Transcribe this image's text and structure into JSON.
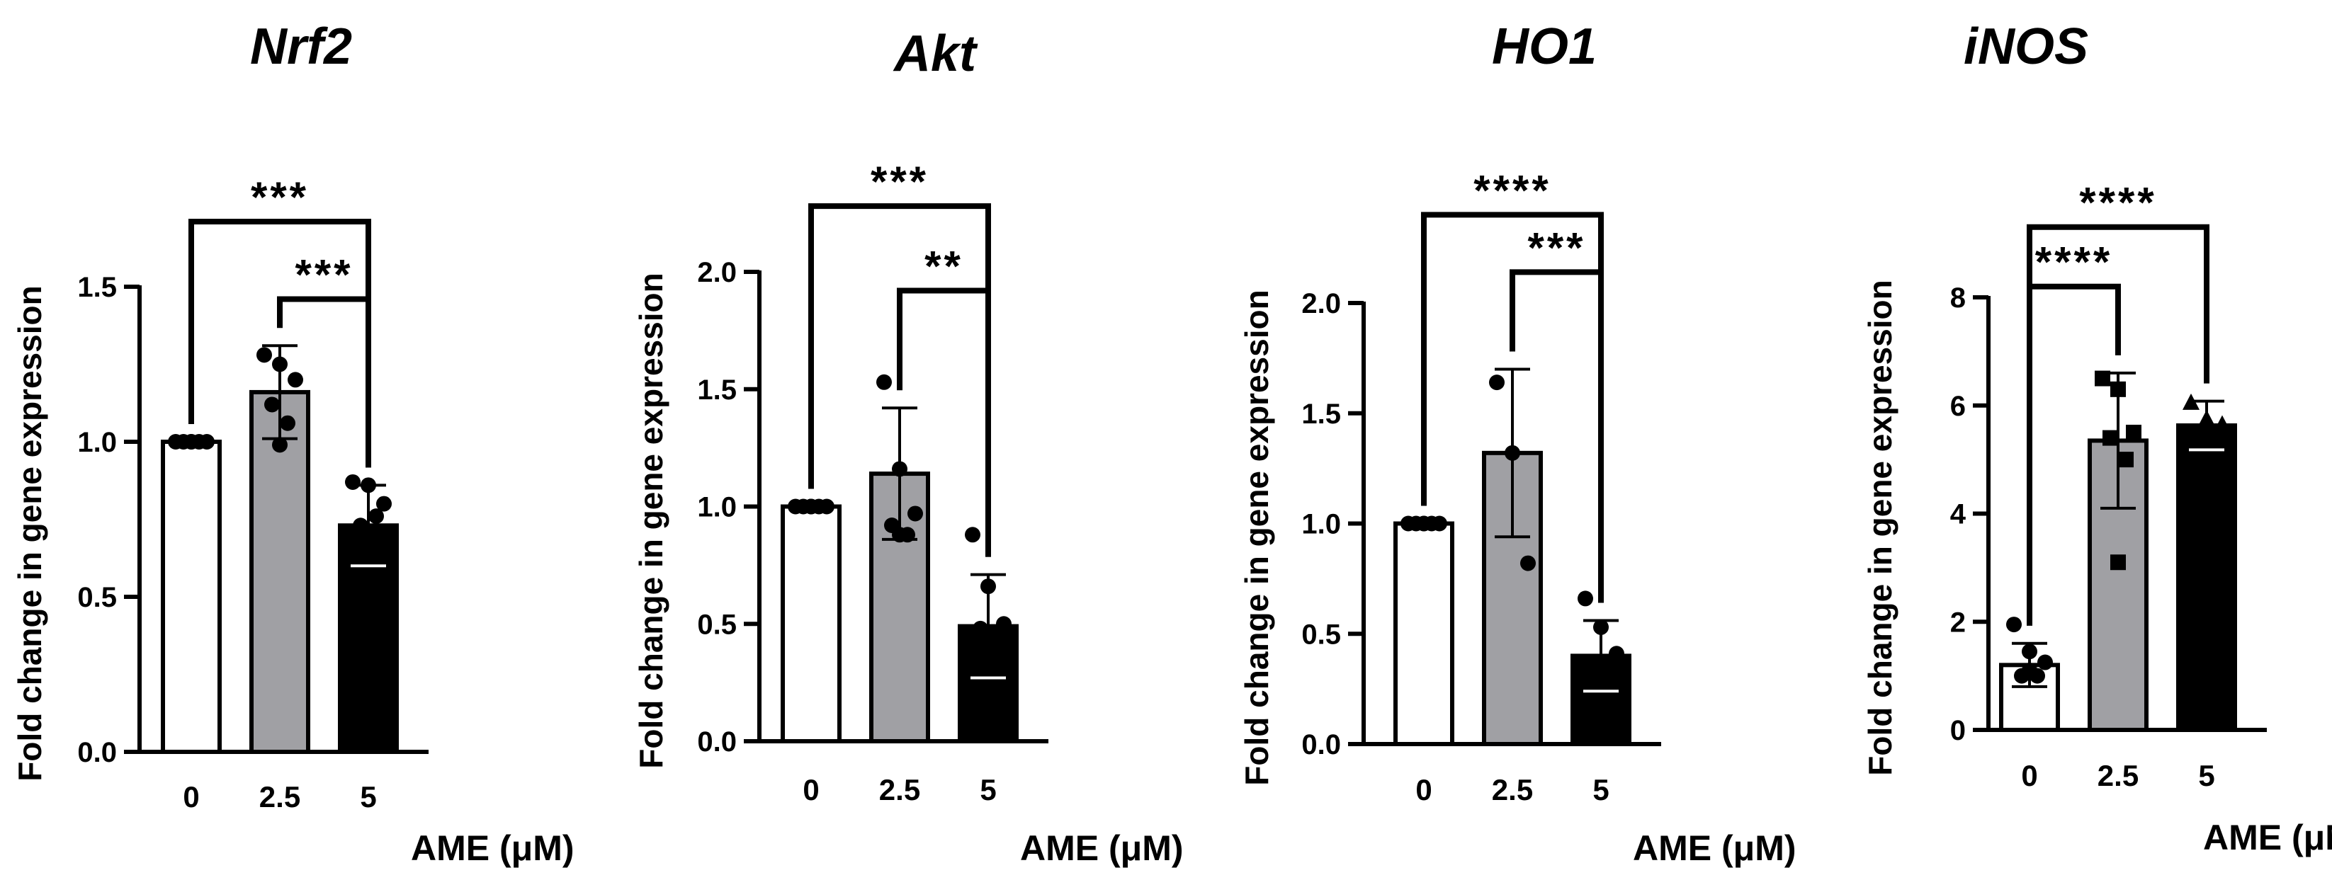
{
  "chart_data": [
    {
      "type": "bar",
      "title": "Nrf2",
      "ylabel": "Fold change in gene expression",
      "xlabel": "AME (μM)",
      "categories": [
        "0",
        "2.5",
        "5"
      ],
      "values": [
        1.0,
        1.16,
        0.73
      ],
      "errors": [
        0.0,
        0.15,
        0.13
      ],
      "points": [
        [
          1.0,
          1.0,
          1.0,
          1.0,
          1.0,
          1.0
        ],
        [
          1.28,
          1.25,
          1.2,
          1.12,
          1.06,
          0.99
        ],
        [
          0.87,
          0.86,
          0.8,
          0.73,
          0.76
        ]
      ],
      "ylim": [
        0,
        1.5
      ],
      "yticks": [
        0.0,
        0.5,
        1.0,
        1.5
      ],
      "ytick_labels": [
        "0.0",
        "0.5",
        "1.0",
        "1.5"
      ],
      "bar_colors": [
        "#ffffff",
        "#a0a0a4",
        "#000000"
      ],
      "marker": "circle",
      "significance": [
        {
          "from": 0,
          "to": 2,
          "label": "***",
          "y": 1.71
        },
        {
          "from": 1,
          "to": 2,
          "label": "***",
          "y": 1.46
        }
      ]
    },
    {
      "type": "bar",
      "title": "Akt",
      "ylabel": "Fold change in gene expression",
      "xlabel": "AME (μM)",
      "categories": [
        "0",
        "2.5",
        "5"
      ],
      "values": [
        1.0,
        1.14,
        0.49
      ],
      "errors": [
        0.0,
        0.28,
        0.22
      ],
      "points": [
        [
          1.0,
          1.0,
          1.0,
          1.0,
          1.0,
          1.0
        ],
        [
          1.53,
          1.16,
          0.97,
          0.92,
          0.88,
          0.88
        ],
        [
          0.88,
          0.66,
          0.5,
          0.48
        ]
      ],
      "ylim": [
        0,
        2.0
      ],
      "yticks": [
        0.0,
        0.5,
        1.0,
        1.5,
        2.0
      ],
      "ytick_labels": [
        "0.0",
        "0.5",
        "1.0",
        "1.5",
        "2.0"
      ],
      "bar_colors": [
        "#ffffff",
        "#a0a0a4",
        "#000000"
      ],
      "marker": "circle",
      "significance": [
        {
          "from": 0,
          "to": 2,
          "label": "***",
          "y": 2.28
        },
        {
          "from": 1,
          "to": 2,
          "label": "**",
          "y": 1.92
        }
      ]
    },
    {
      "type": "bar",
      "title": "HO1",
      "ylabel": "Fold change in gene expression",
      "xlabel": "AME (μM)",
      "categories": [
        "0",
        "2.5",
        "5"
      ],
      "values": [
        1.0,
        1.32,
        0.4
      ],
      "errors": [
        0.0,
        0.38,
        0.16
      ],
      "points": [
        [
          1.0,
          1.0,
          1.0,
          1.0,
          1.0,
          1.0
        ],
        [
          1.64,
          1.32,
          0.82
        ],
        [
          0.66,
          0.53,
          0.41,
          0.36
        ]
      ],
      "ylim": [
        0,
        2.0
      ],
      "yticks": [
        0.0,
        0.5,
        1.0,
        1.5,
        2.0
      ],
      "ytick_labels": [
        "0.0",
        "0.5",
        "1.0",
        "1.5",
        "2.0"
      ],
      "bar_colors": [
        "#ffffff",
        "#a0a0a4",
        "#000000"
      ],
      "marker": "circle",
      "significance": [
        {
          "from": 0,
          "to": 2,
          "label": "****",
          "y": 2.4
        },
        {
          "from": 1,
          "to": 2,
          "label": "***",
          "y": 2.14
        }
      ]
    },
    {
      "type": "bar",
      "title": "iNOS",
      "ylabel": "Fold change in gene expression",
      "xlabel": "AME (μM)",
      "categories": [
        "0",
        "2.5",
        "5"
      ],
      "values": [
        1.2,
        5.35,
        5.63
      ],
      "errors": [
        0.4,
        1.25,
        0.45
      ],
      "points": [
        [
          1.95,
          1.45,
          1.25,
          1.0,
          1.0,
          1.1
        ],
        [
          6.5,
          6.3,
          5.5,
          5.4,
          5.0,
          3.1
        ],
        [
          6.05,
          5.75,
          5.65,
          5.5
        ]
      ],
      "ylim": [
        0,
        8
      ],
      "yticks": [
        0,
        2,
        4,
        6,
        8
      ],
      "ytick_labels": [
        "0",
        "2",
        "4",
        "6",
        "8"
      ],
      "bar_colors": [
        "#ffffff",
        "#a0a0a4",
        "#000000"
      ],
      "marker_per_group": [
        "circle",
        "square",
        "triangle"
      ],
      "significance": [
        {
          "from": 0,
          "to": 2,
          "label": "****",
          "y": 9.3
        },
        {
          "from": 0,
          "to": 1,
          "label": "****",
          "y": 8.2
        }
      ]
    }
  ]
}
